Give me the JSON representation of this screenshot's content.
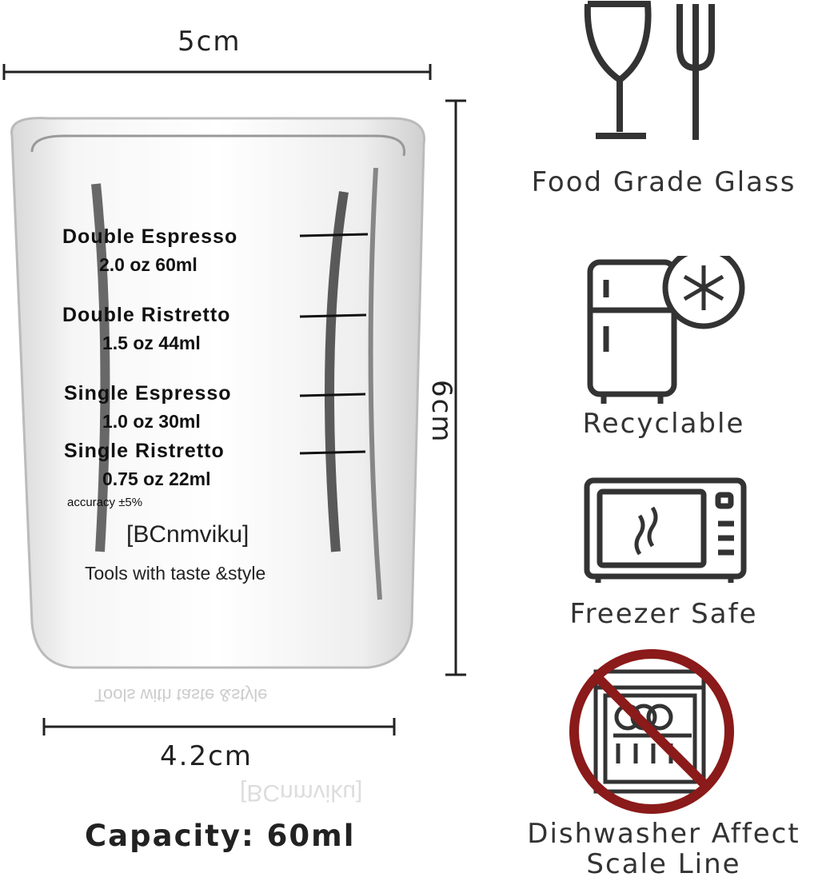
{
  "dimensions": {
    "top_width": "5cm",
    "height": "6cm",
    "bottom_width": "4.2cm"
  },
  "capacity": "Capacity: 60ml",
  "glass_markings": [
    {
      "name": "Double  Espresso",
      "value": "2.0 oz 60ml"
    },
    {
      "name": "Double  Ristretto",
      "value": "1.5 oz 44ml"
    },
    {
      "name": "Single  Espresso",
      "value": "1.0 oz 30ml"
    },
    {
      "name": "Single  Ristretto",
      "value": "0.75 oz 22ml"
    }
  ],
  "accuracy": "accuracy  ±5%",
  "brand": "[BCnmviku]",
  "slogan": "Tools with taste &style",
  "reflection": {
    "brand": "[BCnmviku]",
    "slogan": "Tools with taste &style"
  },
  "features": [
    {
      "icon": "wine-glass-fork-icon",
      "label": "Food Grade Glass"
    },
    {
      "icon": "fridge-snowflake-icon",
      "label": "Recyclable"
    },
    {
      "icon": "microwave-icon",
      "label": "Freezer Safe"
    },
    {
      "icon": "no-dishwasher-icon",
      "label": "Dishwasher Affect\nScale Line"
    }
  ],
  "colors": {
    "prohibition_red": "#8b1a1a",
    "icon_stroke": "#333333"
  }
}
